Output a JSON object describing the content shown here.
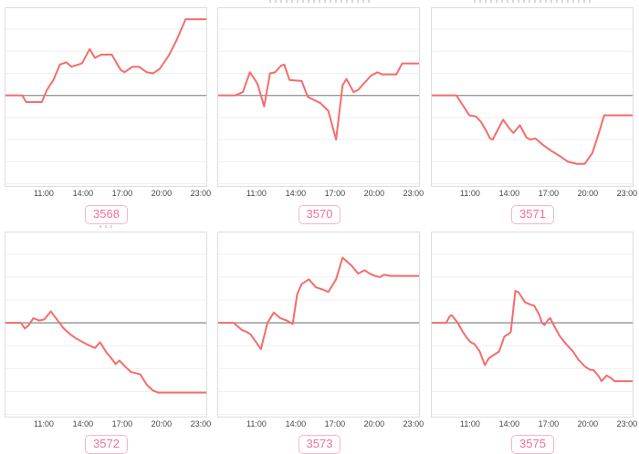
{
  "page": {
    "background": "#ffffff",
    "note": "2x3 grid of intraday sparkline charts; chart titles are cut off at pane edges and illegible"
  },
  "chart_data": {
    "type": "line",
    "layout": "2x3 grid of mini line charts",
    "x_tick_labels": [
      "11:00",
      "14:00",
      "17:00",
      "20:00",
      "23:00"
    ],
    "x_tick_hours": [
      11,
      14,
      17,
      20,
      23
    ],
    "x_range_hours": [
      8,
      23.5
    ],
    "ylim": [
      -4.1,
      3.95
    ],
    "y_axis_labels_visible": false,
    "y_units": "relative gridline units (no y tick labels shown; gray midline = 0)",
    "grid": true,
    "legend": "none",
    "colors": {
      "line": "#f56c6c",
      "zero_line": "#999999",
      "grid": "#f3eded",
      "plot_border": "#dddddd",
      "tick_text": "#444444",
      "badge_border": "#f8b3cc",
      "badge_text": "#ee6fa2"
    },
    "charts": [
      {
        "badge": "3568",
        "points": [
          [
            8,
            0
          ],
          [
            9.3,
            0
          ],
          [
            9.6,
            -0.3
          ],
          [
            10.8,
            -0.3
          ],
          [
            11.2,
            0.25
          ],
          [
            11.7,
            0.7
          ],
          [
            12.2,
            1.4
          ],
          [
            12.7,
            1.5
          ],
          [
            13.1,
            1.3
          ],
          [
            13.9,
            1.45
          ],
          [
            14.5,
            2.1
          ],
          [
            14.9,
            1.7
          ],
          [
            15.4,
            1.85
          ],
          [
            16.2,
            1.85
          ],
          [
            16.9,
            1.15
          ],
          [
            17.2,
            1.05
          ],
          [
            17.8,
            1.3
          ],
          [
            18.3,
            1.3
          ],
          [
            18.9,
            1.05
          ],
          [
            19.4,
            1.0
          ],
          [
            19.9,
            1.2
          ],
          [
            20.6,
            1.8
          ],
          [
            21.2,
            2.5
          ],
          [
            21.9,
            3.45
          ],
          [
            23.5,
            3.45
          ]
        ]
      },
      {
        "badge": "3570",
        "points": [
          [
            8,
            0
          ],
          [
            9.3,
            0
          ],
          [
            9.9,
            0.15
          ],
          [
            10.45,
            1.05
          ],
          [
            10.85,
            0.7
          ],
          [
            11.05,
            0.5
          ],
          [
            11.55,
            -0.5
          ],
          [
            12.0,
            1.0
          ],
          [
            12.4,
            1.05
          ],
          [
            12.85,
            1.35
          ],
          [
            13.1,
            1.4
          ],
          [
            13.5,
            0.7
          ],
          [
            14.45,
            0.65
          ],
          [
            14.9,
            -0.05
          ],
          [
            15.1,
            -0.12
          ],
          [
            15.9,
            -0.35
          ],
          [
            16.5,
            -0.7
          ],
          [
            17.1,
            -2.0
          ],
          [
            17.6,
            0.45
          ],
          [
            17.9,
            0.75
          ],
          [
            18.45,
            0.15
          ],
          [
            18.8,
            0.25
          ],
          [
            19.8,
            0.9
          ],
          [
            20.3,
            1.05
          ],
          [
            20.65,
            0.95
          ],
          [
            21.75,
            0.95
          ],
          [
            22.2,
            1.45
          ],
          [
            23.5,
            1.45
          ]
        ]
      },
      {
        "badge": "3571",
        "points": [
          [
            8,
            0
          ],
          [
            9.9,
            0
          ],
          [
            10.9,
            -0.9
          ],
          [
            11.4,
            -0.95
          ],
          [
            11.8,
            -1.2
          ],
          [
            12.2,
            -1.6
          ],
          [
            12.5,
            -1.95
          ],
          [
            12.7,
            -2.0
          ],
          [
            13.5,
            -1.1
          ],
          [
            14.0,
            -1.5
          ],
          [
            14.3,
            -1.7
          ],
          [
            14.8,
            -1.35
          ],
          [
            15.3,
            -1.9
          ],
          [
            15.6,
            -2.0
          ],
          [
            16.0,
            -1.95
          ],
          [
            16.6,
            -2.25
          ],
          [
            17.2,
            -2.5
          ],
          [
            17.9,
            -2.75
          ],
          [
            18.5,
            -3.0
          ],
          [
            19.2,
            -3.1
          ],
          [
            19.8,
            -3.1
          ],
          [
            20.4,
            -2.6
          ],
          [
            21.0,
            -1.5
          ],
          [
            21.3,
            -0.9
          ],
          [
            23.5,
            -0.9
          ]
        ]
      },
      {
        "badge": "3572",
        "points": [
          [
            8,
            0
          ],
          [
            9.2,
            0
          ],
          [
            9.5,
            -0.25
          ],
          [
            9.8,
            -0.1
          ],
          [
            10.15,
            0.2
          ],
          [
            10.6,
            0.1
          ],
          [
            11.0,
            0.15
          ],
          [
            11.5,
            0.5
          ],
          [
            12.1,
            0.05
          ],
          [
            12.5,
            -0.25
          ],
          [
            13.0,
            -0.5
          ],
          [
            13.5,
            -0.7
          ],
          [
            14.0,
            -0.85
          ],
          [
            14.5,
            -1.0
          ],
          [
            14.9,
            -1.1
          ],
          [
            15.3,
            -0.85
          ],
          [
            15.8,
            -1.3
          ],
          [
            16.1,
            -1.5
          ],
          [
            16.5,
            -1.8
          ],
          [
            16.8,
            -1.65
          ],
          [
            17.3,
            -1.95
          ],
          [
            17.7,
            -2.15
          ],
          [
            18.4,
            -2.25
          ],
          [
            18.9,
            -2.7
          ],
          [
            19.35,
            -2.95
          ],
          [
            19.8,
            -3.05
          ],
          [
            23.5,
            -3.05
          ]
        ]
      },
      {
        "badge": "3573",
        "points": [
          [
            8,
            0
          ],
          [
            9.2,
            0
          ],
          [
            9.8,
            -0.3
          ],
          [
            10.2,
            -0.4
          ],
          [
            10.5,
            -0.5
          ],
          [
            11.3,
            -1.15
          ],
          [
            11.8,
            0
          ],
          [
            12.3,
            0.45
          ],
          [
            12.8,
            0.2
          ],
          [
            13.3,
            0.1
          ],
          [
            13.75,
            -0.05
          ],
          [
            14.1,
            1.25
          ],
          [
            14.45,
            1.7
          ],
          [
            15.0,
            1.9
          ],
          [
            15.55,
            1.55
          ],
          [
            16.1,
            1.45
          ],
          [
            16.5,
            1.35
          ],
          [
            17.1,
            1.9
          ],
          [
            17.6,
            2.85
          ],
          [
            18.3,
            2.5
          ],
          [
            18.8,
            2.15
          ],
          [
            19.3,
            2.3
          ],
          [
            19.7,
            2.15
          ],
          [
            20.1,
            2.05
          ],
          [
            20.5,
            2.0
          ],
          [
            20.8,
            2.1
          ],
          [
            21.3,
            2.05
          ],
          [
            23.5,
            2.05
          ]
        ]
      },
      {
        "badge": "3575",
        "points": [
          [
            8,
            0
          ],
          [
            9.1,
            0
          ],
          [
            9.4,
            0.3
          ],
          [
            9.55,
            0.33
          ],
          [
            10.0,
            0
          ],
          [
            10.4,
            -0.4
          ],
          [
            10.7,
            -0.65
          ],
          [
            11.0,
            -0.85
          ],
          [
            11.3,
            -0.93
          ],
          [
            11.7,
            -1.25
          ],
          [
            12.1,
            -1.85
          ],
          [
            12.4,
            -1.55
          ],
          [
            12.8,
            -1.4
          ],
          [
            13.2,
            -1.25
          ],
          [
            13.6,
            -0.6
          ],
          [
            13.9,
            -0.5
          ],
          [
            14.1,
            -0.4
          ],
          [
            14.45,
            1.4
          ],
          [
            14.7,
            1.33
          ],
          [
            15.2,
            0.9
          ],
          [
            15.6,
            0.8
          ],
          [
            15.9,
            0.75
          ],
          [
            16.3,
            0.35
          ],
          [
            16.5,
            0
          ],
          [
            16.7,
            -0.1
          ],
          [
            17.0,
            0.15
          ],
          [
            17.15,
            0.2
          ],
          [
            17.5,
            -0.2
          ],
          [
            17.9,
            -0.6
          ],
          [
            18.4,
            -0.95
          ],
          [
            18.9,
            -1.25
          ],
          [
            19.3,
            -1.6
          ],
          [
            19.8,
            -1.9
          ],
          [
            20.2,
            -2.05
          ],
          [
            20.5,
            -2.07
          ],
          [
            20.9,
            -2.35
          ],
          [
            21.1,
            -2.55
          ],
          [
            21.5,
            -2.3
          ],
          [
            21.8,
            -2.4
          ],
          [
            22.1,
            -2.55
          ],
          [
            23.5,
            -2.55
          ]
        ]
      }
    ]
  }
}
